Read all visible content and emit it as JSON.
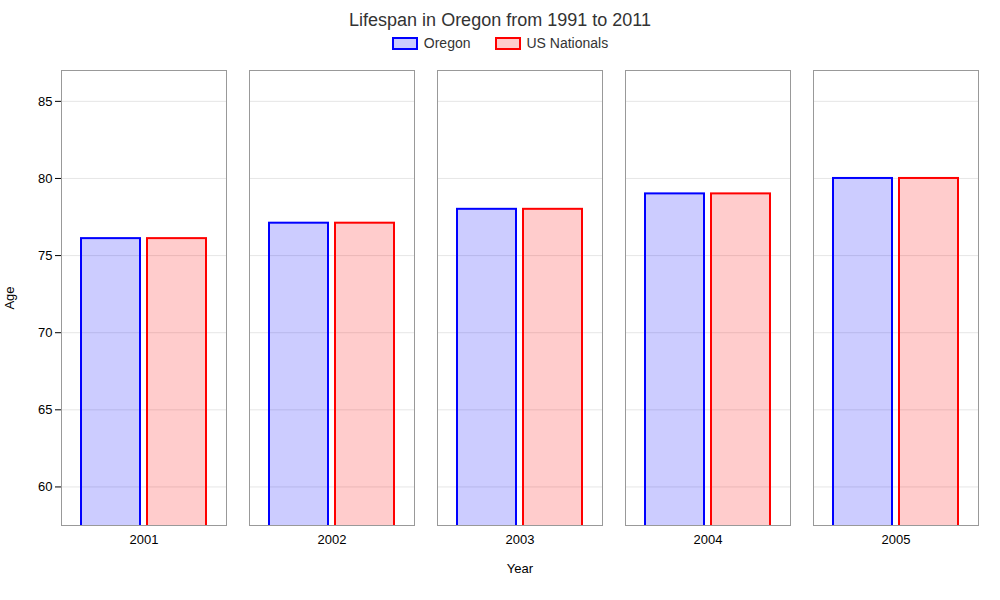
{
  "chart_data": {
    "type": "bar",
    "title": "Lifespan in Oregon from 1991 to 2011",
    "x_label": "Year",
    "y_label": "Age",
    "categories": [
      "2001",
      "2002",
      "2003",
      "2004",
      "2005"
    ],
    "series": [
      {
        "name": "Oregon",
        "color": "#0000ff",
        "values": [
          76.1,
          77.1,
          78.0,
          79.0,
          80.0
        ]
      },
      {
        "name": "US Nationals",
        "color": "#ff0000",
        "values": [
          76.1,
          77.1,
          78.0,
          79.0,
          80.0
        ]
      }
    ],
    "ylim": [
      57.5,
      87
    ],
    "yticks": [
      60,
      65,
      70,
      75,
      80,
      85
    ],
    "grid": true,
    "legend": "top"
  }
}
